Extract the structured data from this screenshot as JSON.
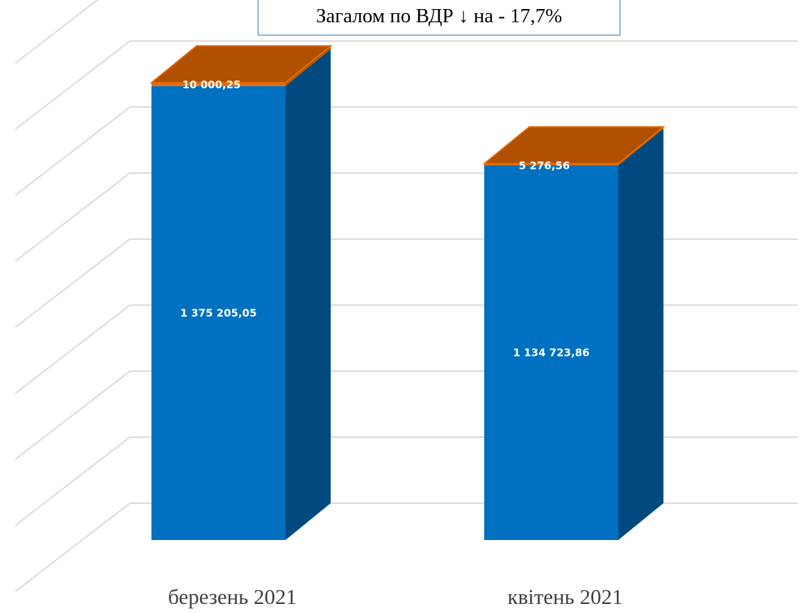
{
  "annotation": "Загалом по ВДР ↓ на - 17,7%",
  "chart_data": {
    "type": "bar",
    "stacked": true,
    "three_d": true,
    "title": "",
    "xlabel": "",
    "ylabel": "",
    "ylim": [
      0,
      1600000
    ],
    "grid": true,
    "legend": "none",
    "categories": [
      "березень 2021",
      "квітень 2021"
    ],
    "series": [
      {
        "values": [
          1375205.05,
          1134723.86
        ],
        "labels": [
          "1 375 205,05",
          "1 134 723,86"
        ],
        "color": "#0070c0"
      },
      {
        "values": [
          10000.25,
          5276.56
        ],
        "labels": [
          "10 000,25",
          "5 276,56"
        ],
        "color": "#e36c0a"
      }
    ]
  }
}
